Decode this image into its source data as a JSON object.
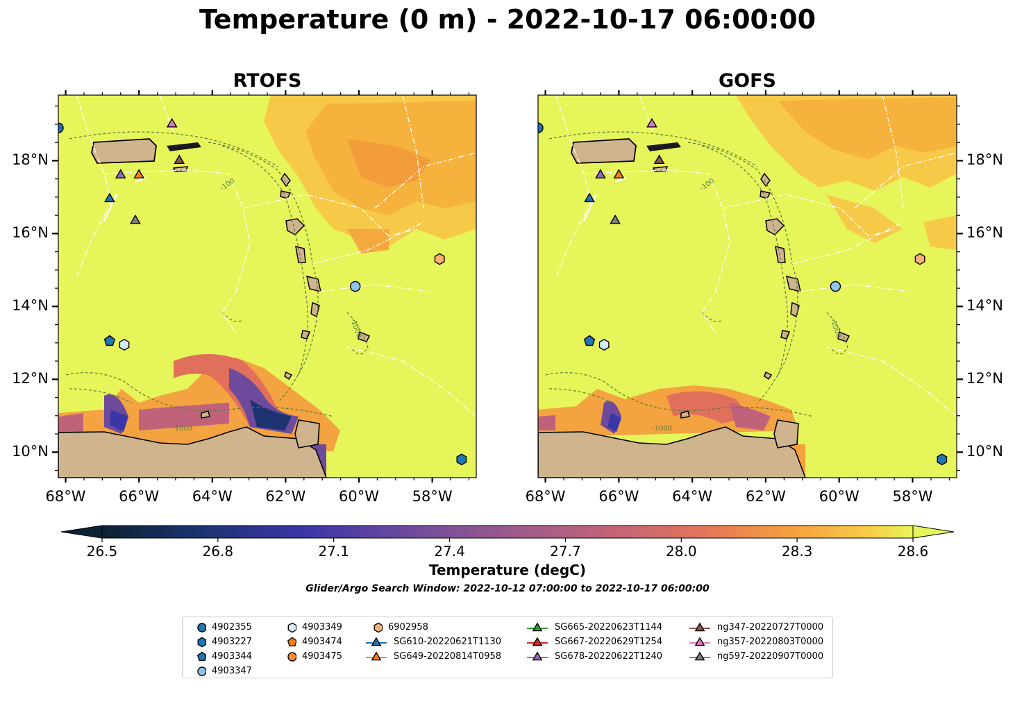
{
  "title": "Temperature (0 m) - 2022-10-17 06:00:00",
  "panels": [
    {
      "title": "RTOFS"
    },
    {
      "title": "GOFS"
    }
  ],
  "axes": {
    "lon_ticks": [
      {
        "value": -68,
        "label": "68°W"
      },
      {
        "value": -66,
        "label": "66°W"
      },
      {
        "value": -64,
        "label": "64°W"
      },
      {
        "value": -62,
        "label": "62°W"
      },
      {
        "value": -60,
        "label": "60°W"
      },
      {
        "value": -58,
        "label": "58°W"
      }
    ],
    "lat_ticks": [
      {
        "value": 18,
        "label": "18°N"
      },
      {
        "value": 16,
        "label": "16°N"
      },
      {
        "value": 14,
        "label": "14°N"
      },
      {
        "value": 12,
        "label": "12°N"
      },
      {
        "value": 10,
        "label": "10°N"
      }
    ],
    "lon_range": [
      -68.2,
      -56.8
    ],
    "lat_range": [
      9.3,
      19.8
    ]
  },
  "colorbar": {
    "label": "Temperature (degC)",
    "ticks": [
      "26.5",
      "26.8",
      "27.1",
      "27.4",
      "27.7",
      "28.0",
      "28.3",
      "28.6"
    ],
    "range": [
      26.5,
      28.6
    ],
    "extend": "both",
    "colormap": "thermal"
  },
  "subtitle": "Glider/Argo Search Window: 2022-10-12 07:00:00 to 2022-10-17 06:00:00",
  "bathymetry_labels": [
    "-100",
    "-1000"
  ],
  "legend": {
    "columns": [
      [
        {
          "label": "4902355",
          "marker": "circle",
          "color": "#1f77b4"
        },
        {
          "label": "4903227",
          "marker": "hexagon",
          "color": "#1f77b4"
        },
        {
          "label": "4903344",
          "marker": "pentagon",
          "color": "#1f77b4"
        },
        {
          "label": "4903347",
          "marker": "circle",
          "color": "#8ec3ea"
        }
      ],
      [
        {
          "label": "4903349",
          "marker": "hexagon",
          "color": "#d6ecfb"
        },
        {
          "label": "4903474",
          "marker": "pentagon",
          "color": "#ff7f0e"
        },
        {
          "label": "4903475",
          "marker": "circle",
          "color": "#ff8c2e"
        }
      ],
      [
        {
          "label": "6902958",
          "marker": "hexagon",
          "color": "#ffb070"
        },
        {
          "label": "SG610-20220621T1130",
          "marker": "triangle",
          "color": "#1f77b4"
        },
        {
          "label": "SG649-20220814T0958",
          "marker": "triangle",
          "color": "#ff7f0e"
        }
      ],
      [
        {
          "label": "SG665-20220623T1144",
          "marker": "triangle",
          "color": "#2ca02c"
        },
        {
          "label": "SG667-20220629T1254",
          "marker": "triangle",
          "color": "#d62728"
        },
        {
          "label": "SG678-20220622T1240",
          "marker": "triangle",
          "color": "#9467bd"
        }
      ],
      [
        {
          "label": "ng347-20220727T0000",
          "marker": "triangle",
          "color": "#8c564b"
        },
        {
          "label": "ng357-20220803T0000",
          "marker": "triangle",
          "color": "#e377c2"
        },
        {
          "label": "ng597-20220907T0000",
          "marker": "triangle",
          "color": "#7f7f7f"
        }
      ]
    ]
  },
  "observations": [
    {
      "id": "4902355",
      "lon": -68.2,
      "lat": 18.9
    },
    {
      "id": "SG610-20220621T1130",
      "lon": -66.8,
      "lat": 16.95
    },
    {
      "id": "SG678-20220622T1240",
      "lon": -66.5,
      "lat": 17.6
    },
    {
      "id": "SG649-20220814T0958",
      "lon": -66.0,
      "lat": 17.6
    },
    {
      "id": "ng347-20220727T0000",
      "lon": -64.9,
      "lat": 18.0
    },
    {
      "id": "ng357-20220803T0000",
      "lon": -65.1,
      "lat": 19.0
    },
    {
      "id": "ng597-20220907T0000",
      "lon": -66.1,
      "lat": 16.35
    },
    {
      "id": "4903344",
      "lon": -66.8,
      "lat": 13.05
    },
    {
      "id": "4903349",
      "lon": -66.4,
      "lat": 12.95
    },
    {
      "id": "4903347",
      "lon": -60.1,
      "lat": 14.55
    },
    {
      "id": "6902958",
      "lon": -57.8,
      "lat": 15.3
    },
    {
      "id": "4903227",
      "lon": -57.2,
      "lat": 9.8
    }
  ],
  "colors": {
    "ocean_warm": "#e6f55a",
    "ocean_orange": "#f5b23c",
    "land": "#cfb48e",
    "contour": "#5a7a3a"
  }
}
